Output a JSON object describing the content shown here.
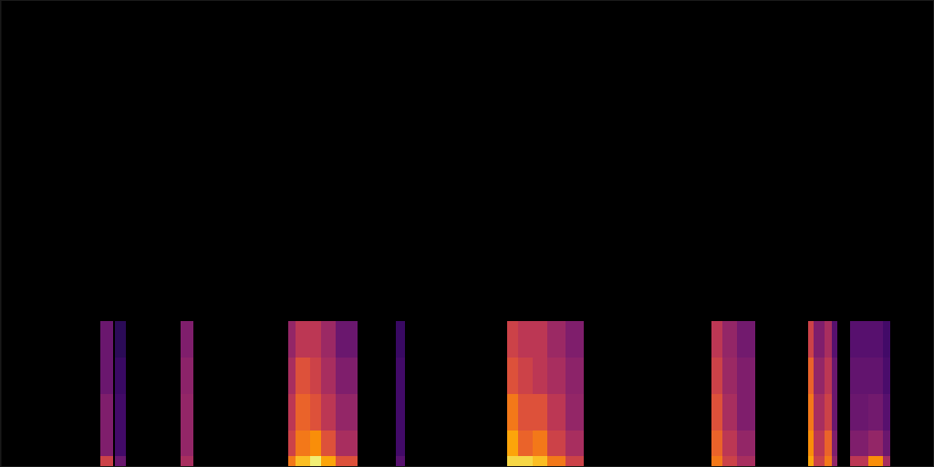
{
  "chart_data": {
    "type": "heatmap",
    "tick_labels": false,
    "grid": false,
    "xlim": [
      0,
      256
    ],
    "ylim": [
      0,
      128
    ],
    "color_range": [
      0,
      1
    ],
    "bands": [
      0,
      3,
      10,
      20,
      30,
      40
    ],
    "columns": [
      {
        "x": [
          27.5,
          31
        ],
        "values": [
          0.55,
          0.35,
          0.35,
          0.3,
          0.3
        ]
      },
      {
        "x": [
          31.5,
          34.5
        ],
        "values": [
          0.3,
          0.2,
          0.2,
          0.18,
          0.15
        ]
      },
      {
        "x": [
          49.5,
          53
        ],
        "values": [
          0.45,
          0.4,
          0.4,
          0.38,
          0.35
        ]
      },
      {
        "x": [
          79,
          81
        ],
        "values": [
          0.7,
          0.55,
          0.5,
          0.45,
          0.4
        ]
      },
      {
        "x": [
          81,
          85
        ],
        "values": [
          0.85,
          0.7,
          0.65,
          0.6,
          0.5
        ]
      },
      {
        "x": [
          85,
          88
        ],
        "values": [
          0.95,
          0.75,
          0.6,
          0.55,
          0.5
        ]
      },
      {
        "x": [
          88,
          92
        ],
        "values": [
          0.8,
          0.6,
          0.5,
          0.45,
          0.42
        ]
      },
      {
        "x": [
          92,
          98
        ],
        "values": [
          0.6,
          0.45,
          0.4,
          0.35,
          0.3
        ]
      },
      {
        "x": [
          108.5,
          111
        ],
        "values": [
          0.25,
          0.2,
          0.2,
          0.2,
          0.18
        ]
      },
      {
        "x": [
          139,
          142
        ],
        "values": [
          0.9,
          0.8,
          0.7,
          0.6,
          0.55
        ]
      },
      {
        "x": [
          142,
          146
        ],
        "values": [
          0.9,
          0.65,
          0.6,
          0.55,
          0.5
        ]
      },
      {
        "x": [
          146,
          150
        ],
        "values": [
          0.85,
          0.7,
          0.6,
          0.5,
          0.5
        ]
      },
      {
        "x": [
          150,
          155
        ],
        "values": [
          0.7,
          0.55,
          0.5,
          0.45,
          0.42
        ]
      },
      {
        "x": [
          155,
          160
        ],
        "values": [
          0.55,
          0.45,
          0.4,
          0.38,
          0.35
        ]
      },
      {
        "x": [
          195,
          198
        ],
        "values": [
          0.7,
          0.65,
          0.6,
          0.55,
          0.5
        ]
      },
      {
        "x": [
          198,
          202
        ],
        "values": [
          0.55,
          0.5,
          0.45,
          0.42,
          0.4
        ]
      },
      {
        "x": [
          202,
          207
        ],
        "values": [
          0.45,
          0.4,
          0.35,
          0.35,
          0.32
        ]
      },
      {
        "x": [
          221.5,
          223
        ],
        "values": [
          0.8,
          0.75,
          0.7,
          0.65,
          0.55
        ]
      },
      {
        "x": [
          223,
          226
        ],
        "values": [
          0.55,
          0.5,
          0.45,
          0.4,
          0.35
        ]
      },
      {
        "x": [
          226,
          228
        ],
        "values": [
          0.7,
          0.65,
          0.55,
          0.5,
          0.45
        ]
      },
      {
        "x": [
          228,
          229.5
        ],
        "values": [
          0.4,
          0.35,
          0.3,
          0.3,
          0.25
        ]
      },
      {
        "x": [
          233,
          238
        ],
        "values": [
          0.5,
          0.35,
          0.3,
          0.28,
          0.25
        ]
      },
      {
        "x": [
          238,
          242
        ],
        "values": [
          0.75,
          0.4,
          0.32,
          0.28,
          0.25
        ]
      },
      {
        "x": [
          242,
          244
        ],
        "values": [
          0.45,
          0.3,
          0.25,
          0.22,
          0.2
        ]
      }
    ]
  }
}
